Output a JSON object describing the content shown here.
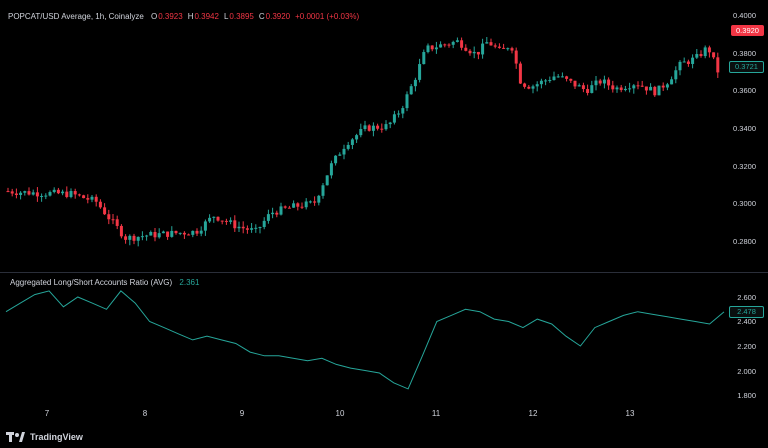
{
  "header": {
    "symbol": "POPCAT/USD Average, 1h, Coinalyze",
    "ohlc": [
      {
        "key": "O",
        "value": "0.3923"
      },
      {
        "key": "H",
        "value": "0.3942"
      },
      {
        "key": "L",
        "value": "0.3895"
      },
      {
        "key": "C",
        "value": "0.3920"
      },
      {
        "key": "",
        "value": "+0.0001 (+0.03%)"
      }
    ]
  },
  "price_axis": [
    "0.4000",
    "0.3800",
    "0.3600",
    "0.3400",
    "0.3200",
    "0.3000",
    "0.2800"
  ],
  "price_tags": {
    "close": "0.3920",
    "line": "0.3721"
  },
  "oscillator": {
    "title": "Aggregated Long/Short Accounts Ratio (AVG)",
    "value": "2.361",
    "axis": [
      "2.600",
      "2.400",
      "2.200",
      "2.000",
      "1.800"
    ],
    "tag": "2.478"
  },
  "x_axis": [
    "7",
    "8",
    "9",
    "10",
    "11",
    "12",
    "13"
  ],
  "branding": {
    "name": "TradingView",
    "icon": "tradingview-logo-icon"
  },
  "colors": {
    "up": "#26a69a",
    "down": "#f23645",
    "line": "#26a69a",
    "background": "#000000"
  },
  "chart_data": [
    {
      "type": "candlestick",
      "series_count": 1,
      "x": [
        "7",
        "8",
        "9",
        "10",
        "11",
        "12",
        "13"
      ],
      "ylim": [
        0.27,
        0.405
      ],
      "close_approx_daily": [
        0.308,
        0.285,
        0.29,
        0.34,
        0.385,
        0.365,
        0.372
      ],
      "last": {
        "open": 0.3923,
        "high": 0.3942,
        "low": 0.3895,
        "close": 0.392
      }
    },
    {
      "type": "line",
      "name": "Aggregated Long/Short Accounts Ratio (AVG)",
      "ylim": [
        1.75,
        2.7
      ],
      "values": [
        2.48,
        2.55,
        2.62,
        2.65,
        2.52,
        2.6,
        2.55,
        2.5,
        2.65,
        2.55,
        2.4,
        2.35,
        2.3,
        2.25,
        2.28,
        2.25,
        2.22,
        2.15,
        2.12,
        2.12,
        2.1,
        2.08,
        2.1,
        2.05,
        2.02,
        2.0,
        1.98,
        1.9,
        1.85,
        2.12,
        2.4,
        2.45,
        2.5,
        2.48,
        2.42,
        2.4,
        2.35,
        2.42,
        2.38,
        2.28,
        2.2,
        2.35,
        2.4,
        2.45,
        2.48,
        2.46,
        2.44,
        2.42,
        2.4,
        2.38,
        2.478
      ]
    }
  ]
}
